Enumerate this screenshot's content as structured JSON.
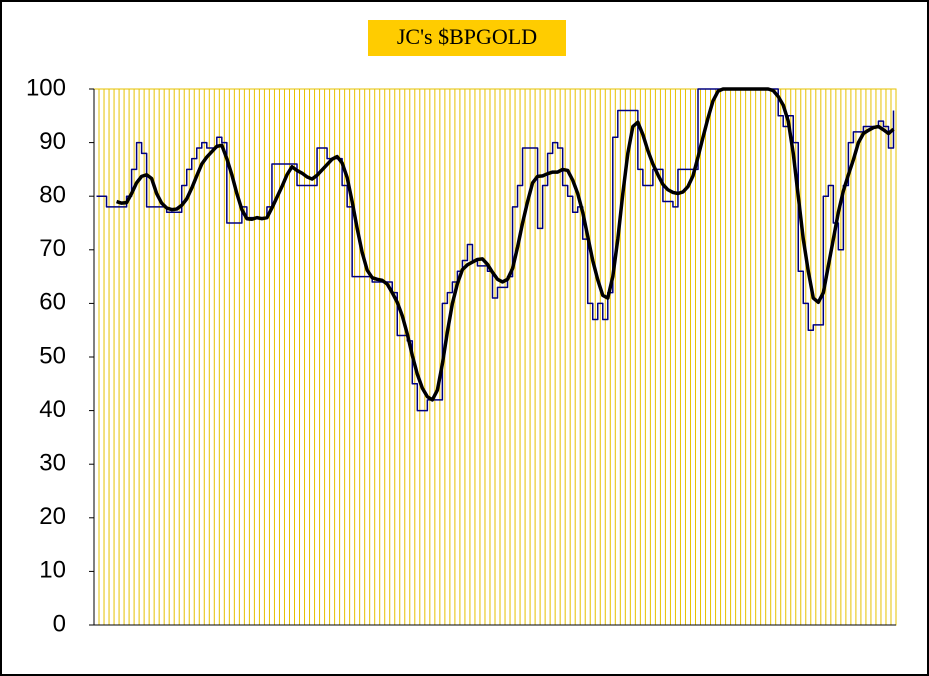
{
  "chart_data": {
    "type": "line",
    "title": "JC's $BPGOLD",
    "categories": [
      null,
      null,
      null,
      null,
      null,
      null,
      null,
      null,
      null,
      null,
      null,
      null,
      null,
      null,
      null,
      null,
      null,
      null,
      null,
      null,
      null,
      null,
      null,
      null,
      null,
      null,
      null,
      null,
      null,
      null,
      null,
      null,
      null,
      null,
      null,
      null,
      null,
      null,
      null,
      null,
      null,
      null,
      null,
      null,
      null,
      null,
      null,
      null,
      null,
      null,
      null,
      null,
      null,
      null,
      null,
      null,
      null,
      null,
      null,
      null,
      null,
      null,
      null,
      null,
      null,
      null,
      null,
      null,
      null,
      null,
      null,
      null,
      null,
      null,
      null,
      null,
      null,
      null,
      null,
      null,
      null,
      null,
      null,
      null,
      null,
      null,
      null,
      null,
      null,
      null,
      null,
      null,
      null,
      null,
      null,
      null,
      null,
      null,
      null,
      null,
      null,
      null,
      null,
      null,
      null,
      null,
      null,
      null,
      null,
      null,
      null,
      null,
      null,
      null,
      null,
      null,
      null,
      null,
      null,
      null,
      null,
      null,
      null,
      null,
      null,
      null,
      null,
      null,
      null,
      null,
      null,
      null,
      null,
      null,
      null,
      null,
      null,
      null,
      null,
      null,
      null,
      null,
      null,
      null,
      null,
      null,
      null,
      null,
      null,
      null,
      null,
      null,
      null,
      null,
      null,
      null,
      null,
      null,
      null,
      null
    ],
    "series": [
      {
        "color": "#000080",
        "step": true,
        "width": 1.5,
        "values": [
          80,
          80,
          78,
          78,
          78,
          78,
          80,
          85,
          90,
          88,
          78,
          78,
          78,
          78,
          77,
          77,
          77,
          82,
          85,
          87,
          89,
          90,
          89,
          89,
          91,
          90,
          75,
          75,
          75,
          78,
          76,
          76,
          76,
          76,
          78,
          86,
          86,
          86,
          86,
          86,
          82,
          82,
          82,
          82,
          89,
          89,
          87,
          87,
          87,
          82,
          78,
          65,
          65,
          65,
          65,
          64,
          64,
          64,
          64,
          62,
          54,
          54,
          53,
          45,
          40,
          40,
          42,
          42,
          42,
          60,
          62,
          64,
          66,
          68,
          71,
          68,
          67,
          67,
          66,
          61,
          63,
          63,
          65,
          78,
          82,
          89,
          89,
          89,
          74,
          82,
          88,
          90,
          89,
          82,
          80,
          77,
          78,
          72,
          60,
          57,
          60,
          57,
          62,
          91,
          96,
          96,
          96,
          96,
          85,
          82,
          82,
          85,
          85,
          79,
          79,
          78,
          85,
          85,
          85,
          85,
          100,
          100,
          100,
          100,
          100,
          100,
          100,
          100,
          100,
          100,
          100,
          100,
          100,
          100,
          100,
          100,
          95,
          93,
          95,
          90,
          66,
          60,
          55,
          56,
          56,
          80,
          82,
          75,
          70,
          82,
          90,
          92,
          92,
          93,
          93,
          93,
          94,
          93,
          89,
          96
        ]
      },
      {
        "color": "#000000",
        "step": false,
        "width": 3.5,
        "values": [
          null,
          null,
          null,
          null,
          79,
          78.7,
          78.8,
          80.5,
          82.5,
          83.7,
          84,
          83.3,
          80.5,
          78.7,
          77.8,
          77.5,
          77.6,
          78.3,
          79.5,
          81.5,
          83.8,
          86,
          87.3,
          88.3,
          89.3,
          89.5,
          87,
          84,
          80.5,
          77.5,
          75.8,
          75.7,
          76,
          75.8,
          76,
          77.8,
          79.8,
          81.8,
          84,
          85.5,
          84.8,
          84.3,
          83.6,
          83.2,
          83.9,
          84.9,
          85.9,
          86.9,
          87.4,
          86.2,
          83.5,
          79,
          74,
          69.5,
          66.2,
          64.8,
          64.5,
          64.3,
          63.6,
          62,
          60.2,
          57.7,
          54.3,
          50.3,
          46.8,
          44.2,
          42.6,
          42,
          43.8,
          48.7,
          54.7,
          60,
          63.7,
          66.3,
          67.2,
          67.7,
          68.2,
          68.3,
          67.3,
          65.8,
          64.5,
          64,
          64.5,
          66.5,
          70.5,
          75,
          79,
          82.5,
          83.7,
          83.8,
          84.2,
          84.5,
          84.5,
          85,
          84.8,
          83,
          80.5,
          77,
          72.5,
          68,
          64.4,
          61.5,
          61,
          65,
          72,
          80.5,
          88,
          93,
          93.8,
          91.5,
          88.5,
          86,
          84,
          82.2,
          81.2,
          80.7,
          80.5,
          80.8,
          81.8,
          83.8,
          87.3,
          91,
          94.6,
          97.8,
          99.6,
          100,
          100,
          100,
          100,
          100,
          100,
          100,
          100,
          100,
          100,
          99.7,
          98.6,
          97,
          94,
          88,
          80,
          72,
          66,
          61,
          60.2,
          62,
          67,
          72,
          77,
          81,
          84,
          86.8,
          90,
          91.7,
          92.3,
          92.8,
          93,
          92.4,
          91.7,
          92.5
        ]
      }
    ],
    "ylim": [
      0,
      100
    ],
    "yticks": [
      0,
      10,
      20,
      30,
      40,
      50,
      60,
      70,
      80,
      90,
      100
    ],
    "grid": true,
    "grid_color": "#e6c200",
    "plot_background": "#ffffff",
    "title_background": "#ffcc00"
  }
}
